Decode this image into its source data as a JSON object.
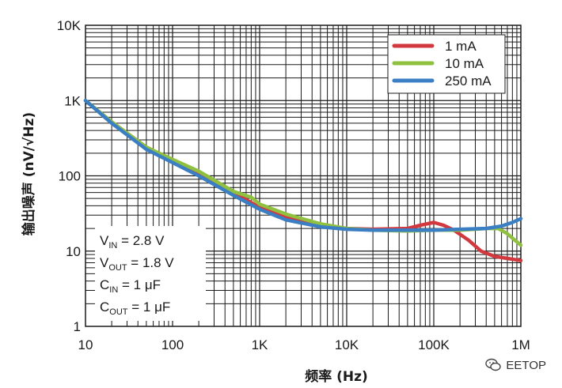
{
  "chart_data": {
    "type": "line",
    "xscale": "log",
    "yscale": "log",
    "xlim": [
      10,
      1000000
    ],
    "ylim": [
      1,
      10000
    ],
    "xlabel": "频率 (Hz)",
    "ylabel": "输出噪声 (nV/√Hz)",
    "x_ticks": [
      {
        "value": 10,
        "label": "10"
      },
      {
        "value": 100,
        "label": "100"
      },
      {
        "value": 1000,
        "label": "1K"
      },
      {
        "value": 10000,
        "label": "10K"
      },
      {
        "value": 100000,
        "label": "100K"
      },
      {
        "value": 1000000,
        "label": "1M"
      }
    ],
    "y_ticks": [
      {
        "value": 1,
        "label": "1"
      },
      {
        "value": 10,
        "label": "10"
      },
      {
        "value": 100,
        "label": "100"
      },
      {
        "value": 1000,
        "label": "1K"
      },
      {
        "value": 10000,
        "label": "10K"
      }
    ],
    "legend_position": "top-right",
    "series": [
      {
        "name": "1 mA",
        "color": "#d2393f",
        "points": [
          [
            10,
            1000
          ],
          [
            20,
            520
          ],
          [
            50,
            240
          ],
          [
            100,
            160
          ],
          [
            200,
            110
          ],
          [
            500,
            60
          ],
          [
            1000,
            38
          ],
          [
            2000,
            28
          ],
          [
            5000,
            22
          ],
          [
            10000,
            20
          ],
          [
            20000,
            19.5
          ],
          [
            50000,
            20
          ],
          [
            70000,
            22
          ],
          [
            100000,
            24
          ],
          [
            130000,
            22
          ],
          [
            170000,
            19
          ],
          [
            250000,
            14
          ],
          [
            350000,
            10
          ],
          [
            500000,
            8.5
          ],
          [
            700000,
            8
          ],
          [
            1000000,
            7.5
          ]
        ]
      },
      {
        "name": "10 mA",
        "color": "#8fc03f",
        "points": [
          [
            10,
            1000
          ],
          [
            20,
            520
          ],
          [
            50,
            240
          ],
          [
            100,
            165
          ],
          [
            200,
            115
          ],
          [
            500,
            62
          ],
          [
            800,
            52
          ],
          [
            1000,
            42
          ],
          [
            2000,
            31
          ],
          [
            5000,
            23
          ],
          [
            10000,
            20
          ],
          [
            20000,
            19
          ],
          [
            50000,
            18.5
          ],
          [
            100000,
            19
          ],
          [
            200000,
            19
          ],
          [
            400000,
            20
          ],
          [
            550000,
            20
          ],
          [
            700000,
            17
          ],
          [
            850000,
            14
          ],
          [
            1000000,
            12
          ]
        ]
      },
      {
        "name": "250 mA",
        "color": "#3a7fc4",
        "points": [
          [
            10,
            1000
          ],
          [
            20,
            500
          ],
          [
            50,
            225
          ],
          [
            100,
            150
          ],
          [
            200,
            100
          ],
          [
            500,
            55
          ],
          [
            1000,
            36
          ],
          [
            2000,
            26
          ],
          [
            5000,
            21
          ],
          [
            10000,
            19.5
          ],
          [
            20000,
            19
          ],
          [
            50000,
            19
          ],
          [
            100000,
            19
          ],
          [
            200000,
            19.5
          ],
          [
            400000,
            20
          ],
          [
            600000,
            21.5
          ],
          [
            800000,
            24
          ],
          [
            1000000,
            27
          ]
        ]
      }
    ],
    "conditions": [
      {
        "main": "V",
        "sub": "IN",
        "rest": " = 2.8 V"
      },
      {
        "main": "V",
        "sub": "OUT",
        "rest": " = 1.8 V"
      },
      {
        "main": "C",
        "sub": "IN",
        "rest": " = 1 μF"
      },
      {
        "main": "C",
        "sub": "OUT",
        "rest": " = 1 μF"
      }
    ]
  },
  "watermark": {
    "text": "EETOP",
    "icon": "wechat-icon"
  }
}
